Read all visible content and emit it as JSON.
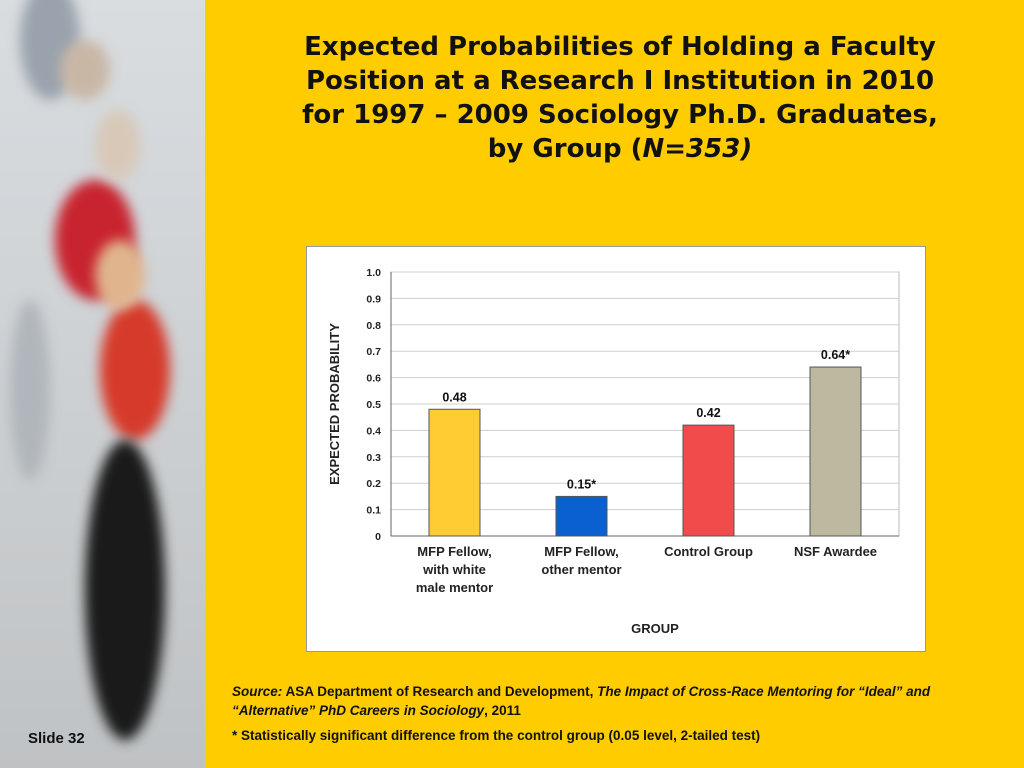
{
  "slide": {
    "label": "Slide 32"
  },
  "title": {
    "line1": "Expected Probabilities of Holding a Faculty",
    "line2": "Position at a Research I Institution in 2010",
    "line3": "for 1997 – 2009 Sociology Ph.D. Graduates,",
    "line4_prefix": "by Group (",
    "line4_n": "N=353)"
  },
  "source": {
    "label": "Source:",
    "org": " ASA Department of Research and Development, ",
    "pub_title": "The Impact of Cross-Race Mentoring for “Ideal” and “Alternative” PhD Careers in Sociology",
    "year": ", 2011"
  },
  "footnote": "* Statistically significant difference from the control group (0.05 level, 2-tailed test)",
  "chart_data": {
    "type": "bar",
    "categories": [
      [
        "MFP Fellow,",
        "with white",
        "male mentor"
      ],
      [
        "MFP Fellow,",
        "other mentor"
      ],
      [
        "Control Group"
      ],
      [
        "NSF Awardee"
      ]
    ],
    "values": [
      0.48,
      0.15,
      0.42,
      0.64
    ],
    "data_labels": [
      "0.48",
      "0.15*",
      "0.42",
      "0.64*"
    ],
    "colors": [
      "#FFCC33",
      "#0A5FD1",
      "#F24B4B",
      "#BDB8A0"
    ],
    "xlabel": "GROUP",
    "ylabel": "EXPECTED PROBABILITY",
    "ylim": [
      0,
      1.0
    ],
    "yticks": [
      "0",
      "0.1",
      "0.2",
      "0.3",
      "0.4",
      "0.5",
      "0.6",
      "0.7",
      "0.8",
      "0.9",
      "1.0"
    ],
    "grid": true
  }
}
